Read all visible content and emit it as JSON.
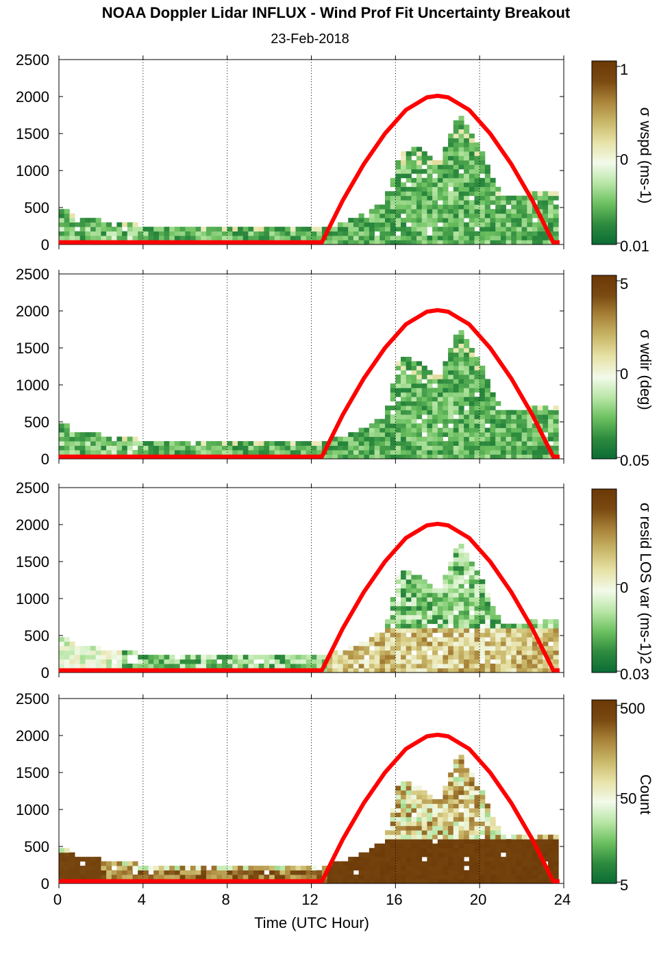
{
  "title": "NOAA Doppler Lidar INFLUX - Wind Prof Fit Uncertainty Breakout",
  "subtitle": "23-Feb-2018",
  "colors": {
    "curve": "#ff0000",
    "colormap": [
      "#0b6b35",
      "#2e8b3e",
      "#6cc060",
      "#b8e6a6",
      "#f2faea",
      "#e7e2a8",
      "#c9b769",
      "#a9843a",
      "#7a4a12",
      "#6b3806"
    ]
  },
  "chart_data": {
    "type": "heatmap",
    "xlabel": "Time (UTC Hour)",
    "xlim": [
      0,
      24
    ],
    "xticks": [
      "0",
      "4",
      "8",
      "12",
      "16",
      "20",
      "24"
    ],
    "ylim": [
      0,
      2500
    ],
    "yticks": [
      "0",
      "500",
      "1000",
      "1500",
      "2000",
      "2500"
    ],
    "grid": "vertical dotted lines at 4-hour intervals",
    "curve": {
      "color": "red",
      "x": [
        0,
        12.5,
        13.5,
        14.5,
        15.5,
        16.5,
        17.5,
        18,
        18.5,
        19.5,
        20.5,
        21.5,
        22.5,
        23.5,
        23.8
      ],
      "y": [
        30,
        30,
        600,
        1090,
        1500,
        1820,
        1990,
        2010,
        1990,
        1820,
        1500,
        1090,
        600,
        30,
        30
      ]
    },
    "panels": [
      {
        "id": "wspd",
        "colorbar_label": "σ wspd (ms-1)",
        "colorbar_ticks": [
          "1",
          "0",
          "0.01"
        ],
        "range_profile": [
          [
            0,
            500
          ],
          [
            1,
            330
          ],
          [
            2,
            300
          ],
          [
            4,
            230
          ],
          [
            6,
            220
          ],
          [
            8,
            200
          ],
          [
            10,
            190
          ],
          [
            12.5,
            190
          ],
          [
            13.5,
            280
          ],
          [
            14.5,
            380
          ],
          [
            15.5,
            550
          ],
          [
            16.2,
            1200
          ],
          [
            17,
            1300
          ],
          [
            18,
            1050
          ],
          [
            19,
            1750
          ],
          [
            20,
            1300
          ],
          [
            21,
            650
          ],
          [
            22,
            640
          ],
          [
            23,
            700
          ],
          [
            23.7,
            700
          ]
        ]
      },
      {
        "id": "wdir",
        "colorbar_label": "σ wdir (deg)",
        "colorbar_ticks": [
          "5",
          "0",
          "0.05"
        ],
        "range_profile": [
          [
            0,
            500
          ],
          [
            1,
            330
          ],
          [
            2,
            300
          ],
          [
            4,
            230
          ],
          [
            6,
            220
          ],
          [
            8,
            200
          ],
          [
            10,
            190
          ],
          [
            12.5,
            190
          ],
          [
            13.5,
            280
          ],
          [
            14.5,
            380
          ],
          [
            15.5,
            550
          ],
          [
            16.2,
            1400
          ],
          [
            17,
            1300
          ],
          [
            18,
            1050
          ],
          [
            19,
            1750
          ],
          [
            20,
            1300
          ],
          [
            21,
            650
          ],
          [
            22,
            640
          ],
          [
            23,
            700
          ],
          [
            23.7,
            700
          ]
        ]
      },
      {
        "id": "resid",
        "colorbar_label": "σ resid LOS var (ms-1)2",
        "colorbar_ticks": [
          "0",
          "0.03"
        ],
        "range_profile": [
          [
            0,
            500
          ],
          [
            1,
            330
          ],
          [
            2,
            300
          ],
          [
            4,
            230
          ],
          [
            6,
            220
          ],
          [
            8,
            200
          ],
          [
            10,
            190
          ],
          [
            12.5,
            190
          ],
          [
            13.5,
            280
          ],
          [
            14.5,
            380
          ],
          [
            15.5,
            550
          ],
          [
            16.2,
            1400
          ],
          [
            17,
            1300
          ],
          [
            18,
            1050
          ],
          [
            19,
            1750
          ],
          [
            20,
            1300
          ],
          [
            21,
            650
          ],
          [
            22,
            640
          ],
          [
            23,
            700
          ],
          [
            23.7,
            700
          ]
        ]
      },
      {
        "id": "count",
        "colorbar_label": "Count",
        "colorbar_ticks": [
          "500",
          "50",
          "5"
        ],
        "range_profile": [
          [
            0,
            480
          ],
          [
            1,
            330
          ],
          [
            2,
            300
          ],
          [
            4,
            230
          ],
          [
            6,
            220
          ],
          [
            8,
            200
          ],
          [
            10,
            190
          ],
          [
            12.5,
            190
          ],
          [
            13.5,
            280
          ],
          [
            14.5,
            380
          ],
          [
            15.5,
            550
          ],
          [
            16.2,
            1400
          ],
          [
            17,
            1300
          ],
          [
            18,
            1050
          ],
          [
            19,
            1750
          ],
          [
            20,
            1300
          ],
          [
            21,
            650
          ],
          [
            22,
            640
          ],
          [
            23,
            650
          ],
          [
            23.7,
            650
          ]
        ]
      }
    ]
  }
}
